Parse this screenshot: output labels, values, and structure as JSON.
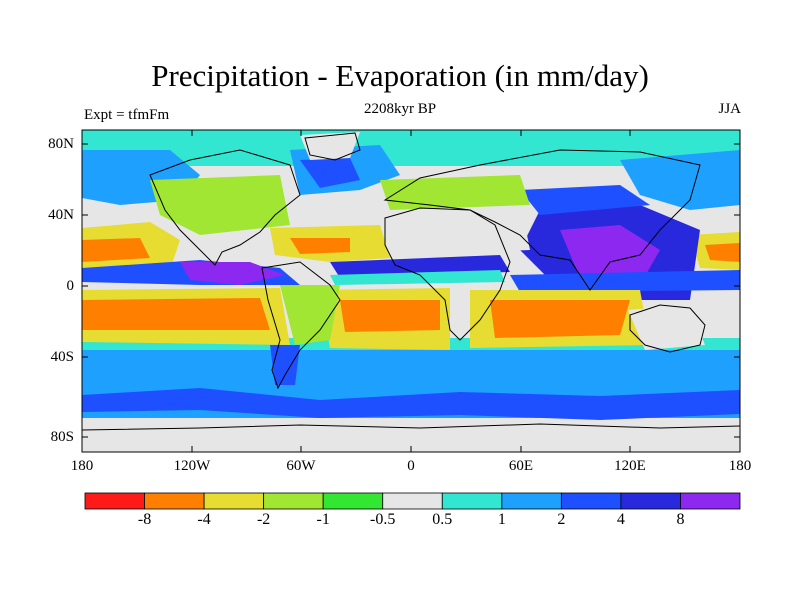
{
  "title": "Precipitation - Evaporation (in mm/day)",
  "subtitle": "2208kyr BP",
  "left_label": "Expt = tfmFm",
  "right_label": "JJA",
  "lat_labels": [
    "80N",
    "40N",
    "0",
    "40S",
    "80S"
  ],
  "lon_labels": [
    "180",
    "120W",
    "60W",
    "0",
    "60E",
    "120E",
    "180"
  ],
  "colorbar": {
    "colors": [
      "#ff1a1a",
      "#ff8000",
      "#e6dc32",
      "#a0e632",
      "#32e632",
      "#e6e6e6",
      "#32e6d2",
      "#1ea0ff",
      "#1e50ff",
      "#2828dc",
      "#8c28f0"
    ],
    "labels": [
      "-8",
      "-4",
      "-2",
      "-1",
      "-0.5",
      "0.5",
      "1",
      "2",
      "4",
      "8"
    ]
  }
}
